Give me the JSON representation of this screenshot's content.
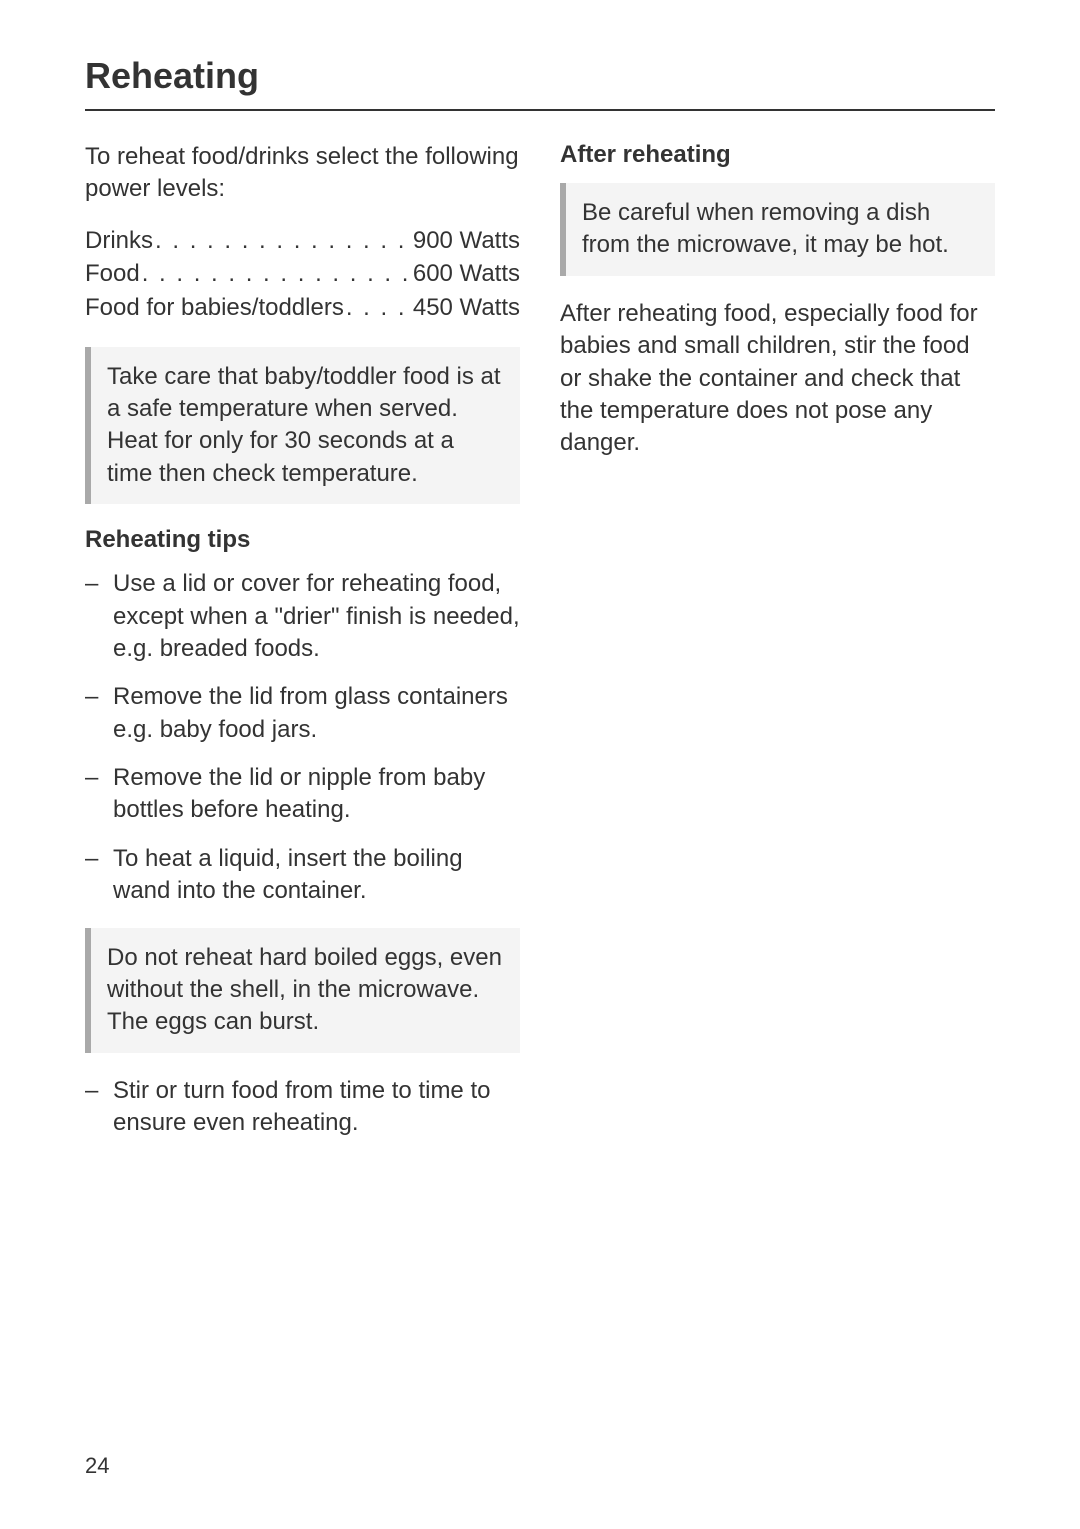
{
  "title": "Reheating",
  "intro": "To reheat food/drinks select the following power levels:",
  "power_levels": [
    {
      "label": "Drinks",
      "value": "900 Watts"
    },
    {
      "label": "Food",
      "value": "600 Watts"
    },
    {
      "label": "Food for babies/toddlers",
      "value": "450 Watts"
    }
  ],
  "baby_callout": "Take care that baby/toddler food is at a safe temperature when served. Heat for only for 30 seconds at a time then check temperature.",
  "tips_heading": "Reheating tips",
  "tips_first": [
    "Use a lid or cover for reheating food, except when a \"drier\" finish is needed, e.g. breaded foods.",
    "Remove the lid from glass containers e.g. baby food jars.",
    "Remove the lid or nipple from baby bottles before heating.",
    "To heat a liquid, insert the boiling wand into the container."
  ],
  "egg_callout": "Do not reheat hard boiled eggs, even without the shell, in the microwave. The eggs can burst.",
  "tips_second": [
    "Stir or turn food from time to time to ensure even reheating."
  ],
  "after_heading": "After reheating",
  "after_callout": "Be careful when removing a dish from the microwave, it may be hot.",
  "after_text": "After reheating food, especially food for babies and small children, stir the food or shake the container and check that the temperature does not pose any danger.",
  "page_number": "24",
  "dots": ". . . . . . . . . . . . . . . . . . . . . . . . . . . . . . . . . . . . . . . ."
}
